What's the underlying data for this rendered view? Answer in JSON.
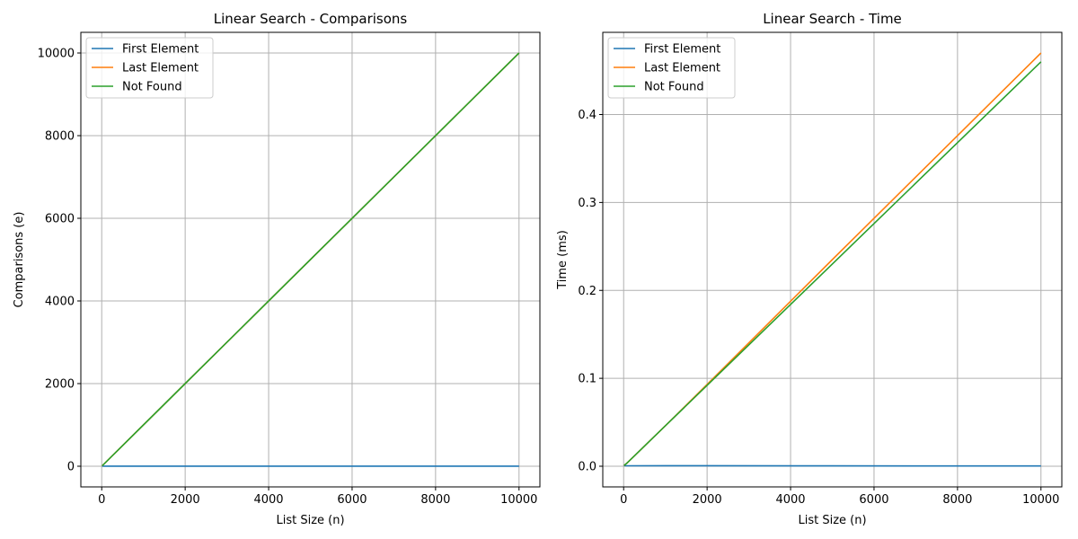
{
  "chart_data": [
    {
      "type": "line",
      "title": "Linear Search - Comparisons",
      "xlabel": "List Size (n)",
      "ylabel": "Comparisons (e)",
      "xlim": [
        -500,
        10500
      ],
      "ylim": [
        -500,
        10500
      ],
      "xticks": [
        0,
        2000,
        4000,
        6000,
        8000,
        10000
      ],
      "yticks": [
        0,
        2000,
        4000,
        6000,
        8000,
        10000
      ],
      "xtick_labels": [
        "0",
        "2000",
        "4000",
        "6000",
        "8000",
        "10000"
      ],
      "ytick_labels": [
        "0",
        "2000",
        "4000",
        "6000",
        "8000",
        "10000"
      ],
      "grid": true,
      "legend_position": "top-left",
      "x": [
        10,
        100,
        1000,
        2000,
        5000,
        10000
      ],
      "series": [
        {
          "name": "First Element",
          "color": "#1f77b4",
          "values": [
            1,
            1,
            1,
            1,
            1,
            1
          ]
        },
        {
          "name": "Last Element",
          "color": "#ff7f0e",
          "values": [
            10,
            100,
            1000,
            2000,
            5000,
            10000
          ]
        },
        {
          "name": "Not Found",
          "color": "#2ca02c",
          "values": [
            10,
            100,
            1000,
            2000,
            5000,
            10000
          ]
        }
      ]
    },
    {
      "type": "line",
      "title": "Linear Search - Time",
      "xlabel": "List Size (n)",
      "ylabel": "Time (ms)",
      "xlim": [
        -500,
        10500
      ],
      "ylim": [
        -0.0235,
        0.4935
      ],
      "xticks": [
        0,
        2000,
        4000,
        6000,
        8000,
        10000
      ],
      "yticks": [
        0.0,
        0.1,
        0.2,
        0.3,
        0.4
      ],
      "xtick_labels": [
        "0",
        "2000",
        "4000",
        "6000",
        "8000",
        "10000"
      ],
      "ytick_labels": [
        "0.0",
        "0.1",
        "0.2",
        "0.3",
        "0.4"
      ],
      "grid": true,
      "legend_position": "top-left",
      "x": [
        10,
        100,
        1000,
        2000,
        5000,
        10000
      ],
      "series": [
        {
          "name": "First Element",
          "color": "#1f77b4",
          "values": [
            0.0005,
            0.0005,
            0.0006,
            0.0006,
            0.0004,
            0.0003
          ]
        },
        {
          "name": "Last Element",
          "color": "#ff7f0e",
          "values": [
            0.0008,
            0.0045,
            0.046,
            0.093,
            0.235,
            0.47
          ]
        },
        {
          "name": "Not Found",
          "color": "#2ca02c",
          "values": [
            0.0008,
            0.0045,
            0.046,
            0.092,
            0.23,
            0.46
          ]
        }
      ]
    }
  ]
}
